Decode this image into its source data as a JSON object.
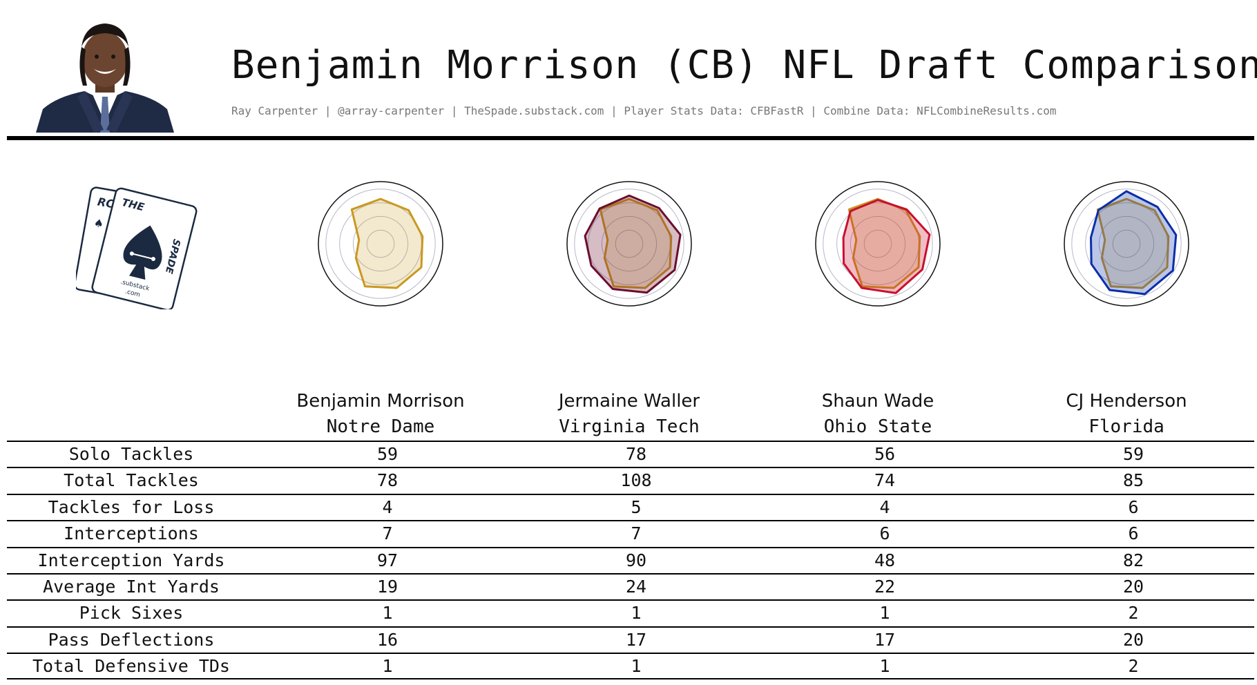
{
  "header": {
    "title": "Benjamin Morrison (CB) NFL Draft Comparison",
    "subtitle": "Ray Carpenter | @array-carpenter | TheSpade.substack.com | Player Stats Data: CFBFastR | Combine Data: NFLCombineResults.com"
  },
  "logo": {
    "back_card_text": "RC",
    "front_card_top": "THE",
    "front_card_side": "SPADE",
    "front_card_center": ".substack",
    "front_card_bottom": ".com",
    "ink_color": "#1b2a41"
  },
  "colors": {
    "morrison": "#c9991f",
    "waller": "#6b0f2e",
    "wade": "#c8102e",
    "henderson": "#0a2ea8",
    "grid": "#b8b8c8"
  },
  "players": [
    {
      "name": "Benjamin Morrison",
      "school": "Notre Dame"
    },
    {
      "name": "Jermaine Waller",
      "school": "Virginia Tech"
    },
    {
      "name": "Shaun Wade",
      "school": "Ohio State"
    },
    {
      "name": "CJ Henderson",
      "school": "Florida"
    }
  ],
  "chart_data": {
    "type": "radar",
    "axes_count": 9,
    "rlim": [
      0,
      1
    ],
    "series": [
      {
        "values": [
          0.82,
          0.8,
          0.78,
          0.86,
          0.86,
          0.83,
          0.52,
          0.4,
          0.82
        ]
      },
      {
        "values": [
          0.88,
          0.85,
          0.95,
          0.96,
          0.95,
          0.88,
          0.8,
          0.82,
          0.84
        ]
      },
      {
        "values": [
          0.8,
          0.82,
          0.96,
          0.94,
          0.96,
          0.86,
          0.72,
          0.64,
          0.78
        ]
      },
      {
        "values": [
          0.96,
          0.88,
          0.92,
          0.98,
          0.98,
          0.9,
          0.74,
          0.66,
          0.8
        ]
      }
    ],
    "comparison_series_index": 0,
    "table": {
      "rows": [
        {
          "label": "Solo Tackles",
          "values": [
            "59",
            "78",
            "56",
            "59"
          ]
        },
        {
          "label": "Total Tackles",
          "values": [
            "78",
            "108",
            "74",
            "85"
          ]
        },
        {
          "label": "Tackles for Loss",
          "values": [
            "4",
            "5",
            "4",
            "6"
          ]
        },
        {
          "label": "Interceptions",
          "values": [
            "7",
            "7",
            "6",
            "6"
          ]
        },
        {
          "label": "Interception Yards",
          "values": [
            "97",
            "90",
            "48",
            "82"
          ]
        },
        {
          "label": "Average Int Yards",
          "values": [
            "19",
            "24",
            "22",
            "20"
          ]
        },
        {
          "label": "Pick Sixes",
          "values": [
            "1",
            "1",
            "1",
            "2"
          ]
        },
        {
          "label": "Pass Deflections",
          "values": [
            "16",
            "17",
            "17",
            "20"
          ]
        },
        {
          "label": "Total Defensive TDs",
          "values": [
            "1",
            "1",
            "1",
            "2"
          ]
        }
      ]
    }
  }
}
